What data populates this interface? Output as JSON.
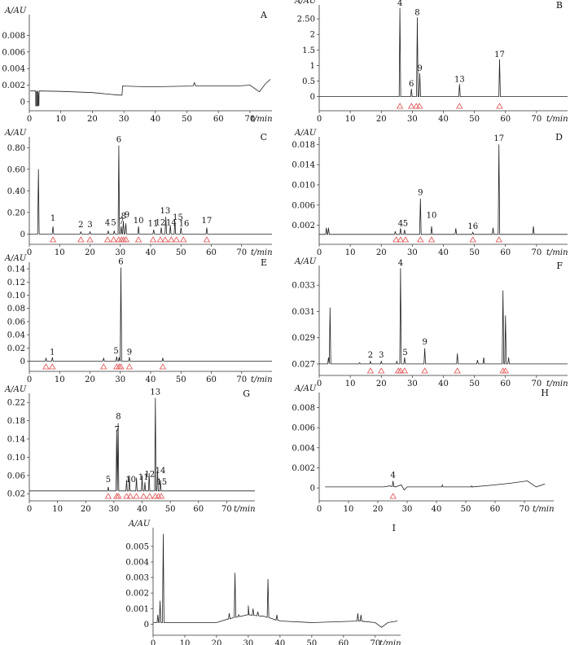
{
  "figure": {
    "layout": "4 rows of 2 panels plus one centered panel (I)"
  },
  "chart_data": [
    {
      "panel": "A",
      "type": "line",
      "ylabel": "A/AU",
      "xlabel": "t/min",
      "xlim": [
        0,
        77
      ],
      "ylim": [
        -0.0005,
        0.0105
      ],
      "xticks": [
        0,
        10,
        20,
        30,
        40,
        50,
        60,
        70
      ],
      "yticks": [
        0,
        0.002,
        0.004,
        0.006,
        0.008
      ],
      "ytick_labels": [
        "0",
        "0.002",
        "0.004",
        "0.006",
        "0.008"
      ],
      "baseline": [
        [
          0.3,
          0.0013
        ],
        [
          2,
          0.0013
        ],
        [
          2.3,
          -0.0005
        ],
        [
          2.5,
          0.0013
        ],
        [
          2.8,
          -0.0005
        ],
        [
          3.1,
          0.0013
        ],
        [
          10,
          0.00125
        ],
        [
          20,
          0.0011
        ],
        [
          28.5,
          0.0008
        ],
        [
          29.4,
          0.0008
        ],
        [
          29.6,
          0.0019
        ],
        [
          38,
          0.0018
        ],
        [
          52,
          0.0019
        ],
        [
          52.4,
          0.0023
        ],
        [
          52.8,
          0.0019
        ],
        [
          66,
          0.0019
        ],
        [
          70,
          0.002
        ],
        [
          73,
          0.0012
        ],
        [
          75,
          0.0022
        ],
        [
          76.5,
          0.0027
        ]
      ],
      "peaks": [
        [
          2.3,
          0.0012
        ],
        [
          2.8,
          0.0012
        ]
      ],
      "labels": []
    },
    {
      "panel": "B",
      "type": "line",
      "ylabel": "A/AU",
      "xlabel": "t/min",
      "xlim": [
        0,
        80
      ],
      "ylim": [
        -0.3,
        2.95
      ],
      "xticks": [
        0,
        10,
        20,
        30,
        40,
        50,
        60,
        70
      ],
      "yticks": [
        0,
        0.5,
        1,
        1.5,
        2,
        2.5
      ],
      "ytick_labels": [
        "0",
        "0.5",
        "1",
        "1.5",
        "2",
        "2.50"
      ],
      "baseline": [
        [
          0,
          0
        ],
        [
          80,
          0
        ]
      ],
      "peaks": [
        [
          26.0,
          2.85
        ],
        [
          29.7,
          0.25
        ],
        [
          31.6,
          2.55
        ],
        [
          32.4,
          0.75
        ],
        [
          45.2,
          0.4
        ],
        [
          58.1,
          1.2
        ]
      ],
      "labels": [
        {
          "text": "4",
          "x": 26.0,
          "y": 2.85
        },
        {
          "text": "6",
          "x": 29.7,
          "y": 0.25
        },
        {
          "text": "8",
          "x": 31.6,
          "y": 2.55
        },
        {
          "text": "9",
          "x": 32.4,
          "y": 0.75
        },
        {
          "text": "13",
          "x": 45.2,
          "y": 0.4
        },
        {
          "text": "17",
          "x": 58.1,
          "y": 1.2
        }
      ],
      "markers": [
        26.0,
        29.7,
        31.3,
        32.3,
        45.2,
        58.1
      ]
    },
    {
      "panel": "C",
      "type": "line",
      "ylabel": "A/AU",
      "xlabel": "t/min",
      "xlim": [
        0,
        80
      ],
      "ylim": [
        -0.05,
        0.9
      ],
      "xticks": [
        0,
        10,
        20,
        30,
        40,
        50,
        60,
        70
      ],
      "yticks": [
        0,
        0.2,
        0.4,
        0.6,
        0.8
      ],
      "ytick_labels": [
        "0",
        "0.20",
        "0.40",
        "0.60",
        "0.80"
      ],
      "baseline": [
        [
          0,
          0
        ],
        [
          80,
          0
        ]
      ],
      "peaks": [
        [
          3,
          0.6
        ],
        [
          7.8,
          0.07
        ],
        [
          17,
          0.02
        ],
        [
          20,
          0.02
        ],
        [
          26,
          0.03
        ],
        [
          28,
          0.03
        ],
        [
          29.5,
          0.82
        ],
        [
          30.3,
          0.07
        ],
        [
          31,
          0.12
        ],
        [
          31.8,
          0.1
        ],
        [
          36,
          0.07
        ],
        [
          41,
          0.04
        ],
        [
          43.5,
          0.06
        ],
        [
          45,
          0.16
        ],
        [
          46.5,
          0.08
        ],
        [
          48,
          0.12
        ],
        [
          50,
          0.06
        ],
        [
          58.5,
          0.06
        ]
      ],
      "labels": [
        {
          "text": "1",
          "x": 7.8,
          "y": 0.1
        },
        {
          "text": "2",
          "x": 17,
          "y": 0.04
        },
        {
          "text": "3",
          "x": 20,
          "y": 0.04
        },
        {
          "text": "4",
          "x": 25.8,
          "y": 0.06
        },
        {
          "text": "5",
          "x": 27.8,
          "y": 0.06
        },
        {
          "text": "6",
          "x": 29.5,
          "y": 0.83
        },
        {
          "text": "7",
          "x": 30.4,
          "y": 0.07
        },
        {
          "text": "8",
          "x": 31.1,
          "y": 0.12
        },
        {
          "text": "9",
          "x": 32.2,
          "y": 0.13
        },
        {
          "text": "10",
          "x": 36,
          "y": 0.08
        },
        {
          "text": "11",
          "x": 40.8,
          "y": 0.05
        },
        {
          "text": "12",
          "x": 43.2,
          "y": 0.06
        },
        {
          "text": "13",
          "x": 44.8,
          "y": 0.17
        },
        {
          "text": "14",
          "x": 46.8,
          "y": 0.06
        },
        {
          "text": "15",
          "x": 49,
          "y": 0.11
        },
        {
          "text": "16",
          "x": 51,
          "y": 0.05
        },
        {
          "text": "17",
          "x": 58.5,
          "y": 0.08
        }
      ],
      "markers": [
        7.8,
        17,
        20,
        25.8,
        27.8,
        29.5,
        30.4,
        31.1,
        31.9,
        36,
        40.8,
        43.2,
        44.8,
        46.8,
        48.5,
        50.8,
        58.5
      ]
    },
    {
      "panel": "D",
      "type": "line",
      "ylabel": "A/AU",
      "xlabel": "t/min",
      "xlim": [
        0,
        80
      ],
      "ylim": [
        -0.0008,
        0.0195
      ],
      "xticks": [
        0,
        10,
        20,
        30,
        40,
        50,
        60,
        70
      ],
      "yticks": [
        0.002,
        0.006,
        0.01,
        0.014,
        0.018
      ],
      "ytick_labels": [
        "0.002",
        "0.006",
        "0.010",
        "0.014",
        "0.018"
      ],
      "baseline": [
        [
          0,
          0.0002
        ],
        [
          80,
          0.0002
        ]
      ],
      "peaks": [
        [
          2.3,
          0.0015
        ],
        [
          3,
          0.0015
        ],
        [
          24.5,
          0.0008
        ],
        [
          26.2,
          0.0014
        ],
        [
          27.5,
          0.0011
        ],
        [
          32.6,
          0.0073
        ],
        [
          36.2,
          0.0018
        ],
        [
          44,
          0.0014
        ],
        [
          49.5,
          0.0006
        ],
        [
          56,
          0.0015
        ],
        [
          57.9,
          0.018
        ],
        [
          69,
          0.0018
        ]
      ],
      "labels": [
        {
          "text": "4",
          "x": 26.2,
          "y": 0.0014
        },
        {
          "text": "5",
          "x": 27.8,
          "y": 0.0014
        },
        {
          "text": "9",
          "x": 32.6,
          "y": 0.0075
        },
        {
          "text": "10",
          "x": 36.2,
          "y": 0.003
        },
        {
          "text": "16",
          "x": 49.5,
          "y": 0.0008
        },
        {
          "text": "17",
          "x": 57.9,
          "y": 0.0182
        }
      ],
      "markers": [
        24.8,
        26.2,
        27.8,
        32.6,
        36.2,
        49.5,
        57.9
      ]
    },
    {
      "panel": "E",
      "type": "line",
      "ylabel": "A/AU",
      "xlabel": "t/min",
      "xlim": [
        0,
        80
      ],
      "ylim": [
        -0.008,
        0.15
      ],
      "xticks": [
        0,
        10,
        20,
        30,
        40,
        50,
        60,
        70
      ],
      "yticks": [
        0,
        0.02,
        0.04,
        0.06,
        0.08,
        0.1,
        0.12,
        0.14
      ],
      "ytick_labels": [
        "0",
        "0.02",
        "0.04",
        "0.06",
        "0.08",
        "0.10",
        "0.12",
        "0.14"
      ],
      "baseline": [
        [
          0,
          0
        ],
        [
          80,
          0
        ]
      ],
      "peaks": [
        [
          5.5,
          0.005
        ],
        [
          7.6,
          0.006
        ],
        [
          24.5,
          0.005
        ],
        [
          28.8,
          0.007
        ],
        [
          29.6,
          0.006
        ],
        [
          30.2,
          0.142
        ],
        [
          33,
          0.006
        ],
        [
          44,
          0.005
        ]
      ],
      "labels": [
        {
          "text": "1",
          "x": 7.6,
          "y": 0.006
        },
        {
          "text": "5",
          "x": 28.6,
          "y": 0.008
        },
        {
          "text": "6",
          "x": 30.2,
          "y": 0.143
        },
        {
          "text": "9",
          "x": 33,
          "y": 0.006
        }
      ],
      "markers": [
        5.5,
        7.6,
        24.5,
        28.8,
        29.6,
        30.2,
        33,
        44
      ]
    },
    {
      "panel": "F",
      "type": "line",
      "ylabel": "A/AU",
      "xlabel": "t/min",
      "xlim": [
        0,
        80
      ],
      "ylim": [
        0.0265,
        0.0345
      ],
      "xticks": [
        0,
        10,
        20,
        30,
        40,
        50,
        60,
        70
      ],
      "yticks": [
        0.027,
        0.029,
        0.031,
        0.033
      ],
      "ytick_labels": [
        "0.027",
        "0.029",
        "0.031",
        "0.033"
      ],
      "baseline": [
        [
          0,
          0.027
        ],
        [
          80,
          0.027
        ]
      ],
      "peaks": [
        [
          3,
          0.0275
        ],
        [
          3.5,
          0.0313
        ],
        [
          13,
          0.0271
        ],
        [
          16.5,
          0.0272
        ],
        [
          20,
          0.0272
        ],
        [
          25,
          0.0272
        ],
        [
          26.2,
          0.0343
        ],
        [
          27.5,
          0.0275
        ],
        [
          34,
          0.0282
        ],
        [
          44.5,
          0.0278
        ],
        [
          51,
          0.0273
        ],
        [
          53,
          0.0275
        ],
        [
          59.2,
          0.0326
        ],
        [
          60,
          0.0307
        ],
        [
          61,
          0.0275
        ]
      ],
      "labels": [
        {
          "text": "2",
          "x": 16.5,
          "y": 0.0273
        },
        {
          "text": "3",
          "x": 20,
          "y": 0.0273
        },
        {
          "text": "4",
          "x": 26.2,
          "y": 0.0343
        },
        {
          "text": "5",
          "x": 27.7,
          "y": 0.0275
        },
        {
          "text": "9",
          "x": 34,
          "y": 0.0283
        }
      ],
      "markers": [
        16.5,
        20,
        25.5,
        26.2,
        27.5,
        34,
        44.5,
        59.2,
        60
      ]
    },
    {
      "panel": "G",
      "type": "line",
      "ylabel": "A/AU",
      "xlabel": "t/min",
      "xlim": [
        0,
        80
      ],
      "ylim": [
        0.015,
        0.24
      ],
      "xticks": [
        0,
        10,
        20,
        30,
        40,
        50,
        60,
        70
      ],
      "yticks": [
        0.02,
        0.06,
        0.1,
        0.14,
        0.18,
        0.22
      ],
      "ytick_labels": [
        "0.02",
        "0.06",
        "0.10",
        "0.14",
        "0.18",
        "0.22"
      ],
      "baseline": [
        [
          0,
          0.026
        ],
        [
          80,
          0.026
        ]
      ],
      "peaks": [
        [
          28,
          0.035
        ],
        [
          31,
          0.16
        ],
        [
          31.5,
          0.175
        ],
        [
          34.5,
          0.05
        ],
        [
          35.5,
          0.06
        ],
        [
          38,
          0.055
        ],
        [
          40,
          0.06
        ],
        [
          41,
          0.045
        ],
        [
          42.5,
          0.065
        ],
        [
          44.7,
          0.23
        ],
        [
          45.5,
          0.07
        ],
        [
          46.5,
          0.05
        ]
      ],
      "labels": [
        {
          "text": "5",
          "x": 28,
          "y": 0.04
        },
        {
          "text": "7",
          "x": 31.1,
          "y": 0.15
        },
        {
          "text": "8",
          "x": 31.6,
          "y": 0.178
        },
        {
          "text": "10",
          "x": 36,
          "y": 0.04
        },
        {
          "text": "11",
          "x": 40.5,
          "y": 0.045
        },
        {
          "text": "12",
          "x": 42.7,
          "y": 0.052
        },
        {
          "text": "13",
          "x": 44.7,
          "y": 0.232
        },
        {
          "text": "14",
          "x": 46.5,
          "y": 0.06
        },
        {
          "text": "15",
          "x": 47,
          "y": 0.035
        }
      ],
      "markers": [
        28,
        31,
        31.6,
        34.5,
        35.8,
        38,
        40.5,
        42.7,
        44.7,
        45.8,
        46.8
      ]
    },
    {
      "panel": "H",
      "type": "line",
      "ylabel": "A/AU",
      "xlabel": "t/min",
      "xlim": [
        0,
        80
      ],
      "ylim": [
        -0.0008,
        0.0095
      ],
      "xticks": [
        0,
        10,
        20,
        30,
        40,
        50,
        60,
        70
      ],
      "yticks": [
        0,
        0.002,
        0.004,
        0.006,
        0.008
      ],
      "ytick_labels": [
        "0",
        "0.002",
        "0.004",
        "0.006",
        "0.008"
      ],
      "baseline": [
        [
          2,
          0.0001
        ],
        [
          10,
          0.0001
        ],
        [
          22,
          0.0001
        ],
        [
          24,
          0.0002
        ],
        [
          26,
          0.0001
        ],
        [
          28,
          0.0003
        ],
        [
          29,
          -0.0002
        ],
        [
          30,
          0.0001
        ],
        [
          40,
          0.0001
        ],
        [
          52,
          0.0001
        ],
        [
          60,
          0.0003
        ],
        [
          66,
          0.0005
        ],
        [
          71,
          0.0007
        ],
        [
          74,
          0.0001
        ],
        [
          77,
          0.0004
        ]
      ],
      "peaks": [
        [
          25.2,
          0.0007
        ],
        [
          42,
          0.0003
        ],
        [
          52,
          0.0002
        ]
      ],
      "labels": [
        {
          "text": "4",
          "x": 25.2,
          "y": 0.0008
        }
      ],
      "markers": [
        25.2
      ]
    },
    {
      "panel": "I",
      "type": "line",
      "ylabel": "A/AU",
      "xlabel": "t/min",
      "xlim": [
        0,
        78
      ],
      "ylim": [
        -0.0004,
        0.0062
      ],
      "xticks": [
        0,
        10,
        20,
        30,
        40,
        50,
        60,
        70
      ],
      "yticks": [
        0,
        0.001,
        0.002,
        0.003,
        0.004,
        0.005
      ],
      "ytick_labels": [
        "0",
        "0.001",
        "0.002",
        "0.003",
        "0.004",
        "0.005"
      ],
      "baseline": [
        [
          0,
          0.0001
        ],
        [
          20,
          0.0001
        ],
        [
          25,
          0.0004
        ],
        [
          30,
          0.0006
        ],
        [
          35,
          0.0005
        ],
        [
          40,
          0.0002
        ],
        [
          50,
          0.0001
        ],
        [
          65,
          0.0002
        ],
        [
          70,
          0.0001
        ],
        [
          72,
          -0.0002
        ],
        [
          74,
          0.0001
        ],
        [
          77,
          0.0002
        ]
      ],
      "peaks": [
        [
          1.5,
          0.0006
        ],
        [
          2.2,
          0.0015
        ],
        [
          3.2,
          0.0058
        ],
        [
          24,
          0.0007
        ],
        [
          25.8,
          0.0033
        ],
        [
          27,
          0.0006
        ],
        [
          30,
          0.0012
        ],
        [
          31.5,
          0.001
        ],
        [
          33,
          0.0008
        ],
        [
          36.2,
          0.0029
        ],
        [
          39,
          0.0006
        ],
        [
          64.5,
          0.0007
        ],
        [
          65.5,
          0.0006
        ]
      ],
      "labels": [],
      "markers": []
    }
  ]
}
